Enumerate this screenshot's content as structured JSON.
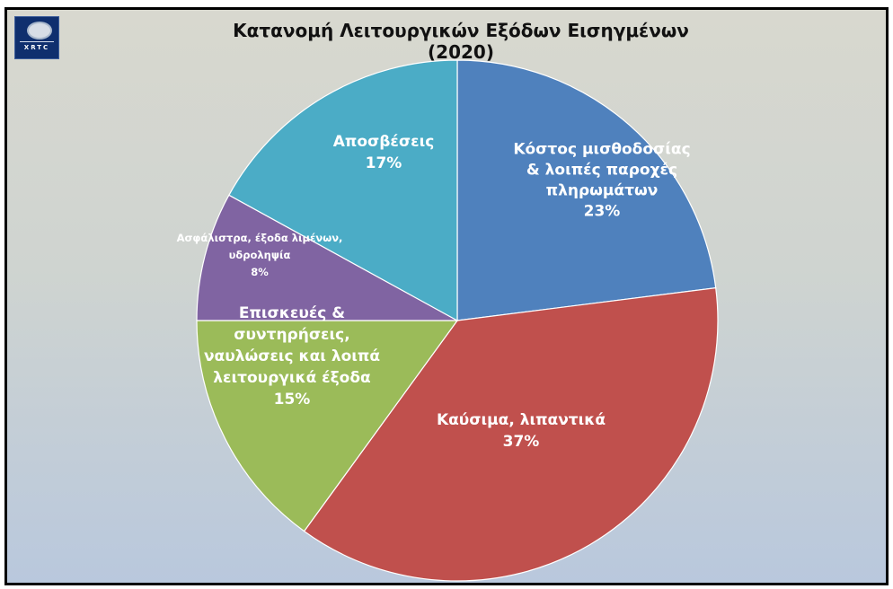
{
  "logo": {
    "text": "XRTC"
  },
  "chart_data": {
    "type": "pie",
    "title": "Κατανομή Λειτουργικών Εξόδων Εισηγμένων (2020)",
    "slices": [
      {
        "label": "Κόστος μισθοδοσίας & λοιπές παροχές πληρωμάτων",
        "value": 23,
        "percent_label": "23%",
        "color": "#4f81bd"
      },
      {
        "label": "Καύσιμα, λιπαντικά",
        "value": 37,
        "percent_label": "37%",
        "color": "#c0504d"
      },
      {
        "label": "Επισκευές & συντηρήσεις, ναυλώσεις και λοιπά λειτουργικά έξοδα",
        "value": 15,
        "percent_label": "15%",
        "color": "#9bbb59"
      },
      {
        "label": "Ασφάλιστρα, έξοδα λιμένων, υδροληψία",
        "value": 8,
        "percent_label": "8%",
        "color": "#8064a2"
      },
      {
        "label": "Αποσβέσεις",
        "value": 17,
        "percent_label": "17%",
        "color": "#4bacc6"
      }
    ],
    "labels_lines": [
      [
        "Κόστος μισθοδοσίας",
        "& λοιπές παροχές",
        "πληρωμάτων",
        "23%"
      ],
      [
        "Καύσιμα, λιπαντικά",
        "37%"
      ],
      [
        "Επισκευές &",
        "συντηρήσεις,",
        "ναυλώσεις και λοιπά",
        "λειτουργικά έξοδα",
        "15%"
      ],
      [
        "Ασφάλιστρα, έξοδα λιμένων,",
        "υδροληψία",
        "8%"
      ],
      [
        "Αποσβέσεις",
        "17%"
      ]
    ]
  }
}
